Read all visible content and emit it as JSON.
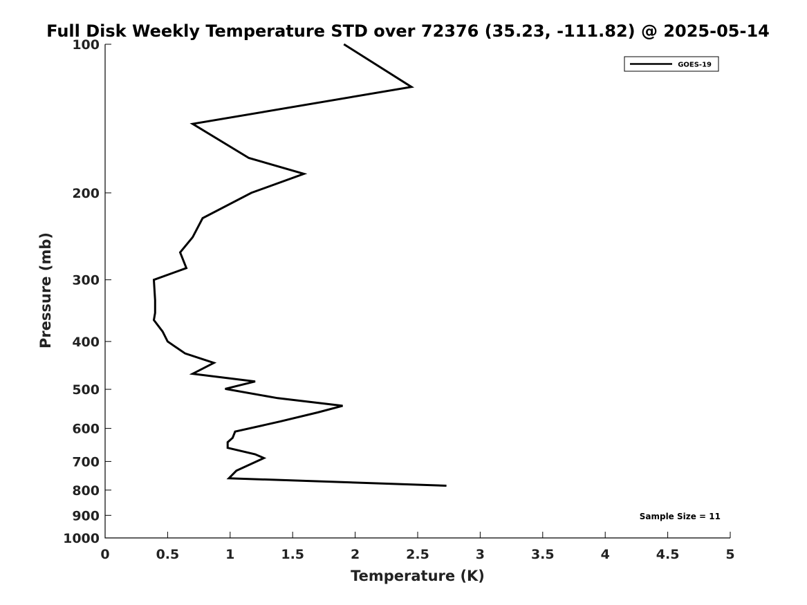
{
  "chart_data": {
    "type": "line",
    "title": "Full Disk Weekly Temperature STD over 72376 (35.23, -111.82) @ 2025-05-14",
    "xlabel": "Temperature (K)",
    "ylabel": "Pressure (mb)",
    "xlim": [
      0,
      5
    ],
    "ylim": [
      100,
      1000
    ],
    "y_scale": "log",
    "y_reversed": true,
    "grid": false,
    "legend_position": "top-right",
    "x_ticks": [
      "0",
      "0.5",
      "1",
      "1.5",
      "2",
      "2.5",
      "3",
      "3.5",
      "4",
      "4.5",
      "5"
    ],
    "y_ticks": [
      "100",
      "200",
      "300",
      "400",
      "500",
      "600",
      "700",
      "800",
      "900",
      "1000"
    ],
    "series": [
      {
        "name": "GOES-19",
        "color": "#000000",
        "points": [
          [
            1.91,
            100
          ],
          [
            2.45,
            122
          ],
          [
            0.7,
            145
          ],
          [
            1.15,
            170
          ],
          [
            1.59,
            183
          ],
          [
            1.17,
            200
          ],
          [
            0.78,
            225
          ],
          [
            0.7,
            246
          ],
          [
            0.6,
            264
          ],
          [
            0.65,
            284
          ],
          [
            0.39,
            300
          ],
          [
            0.4,
            330
          ],
          [
            0.4,
            350
          ],
          [
            0.39,
            362
          ],
          [
            0.46,
            382
          ],
          [
            0.5,
            400
          ],
          [
            0.64,
            423
          ],
          [
            0.87,
            442
          ],
          [
            0.7,
            465
          ],
          [
            1.2,
            482
          ],
          [
            0.96,
            499
          ],
          [
            1.38,
            521
          ],
          [
            1.9,
            540
          ],
          [
            1.7,
            557
          ],
          [
            1.4,
            581
          ],
          [
            1.04,
            609
          ],
          [
            1.02,
            627
          ],
          [
            0.98,
            640
          ],
          [
            0.98,
            657
          ],
          [
            1.2,
            677
          ],
          [
            1.27,
            689
          ],
          [
            1.05,
            731
          ],
          [
            0.99,
            757
          ],
          [
            2.73,
            784
          ]
        ]
      }
    ],
    "annotations": [
      {
        "text": "Sample Size = 11",
        "position": "bottom-right"
      }
    ]
  }
}
